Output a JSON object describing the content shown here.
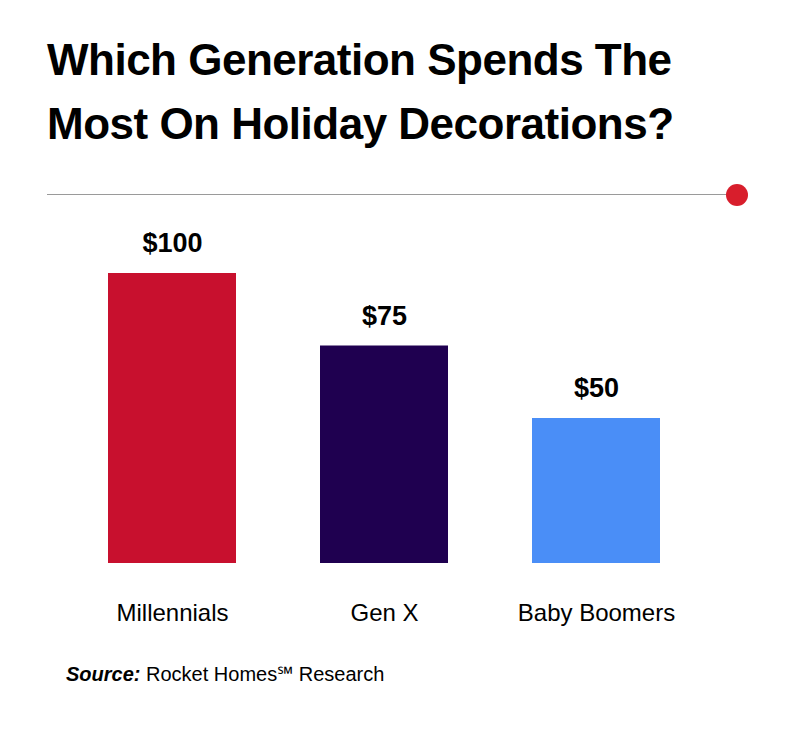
{
  "chart_data": {
    "type": "bar",
    "title": "Which Generation Spends The Most On Holiday Decorations?",
    "categories": [
      "Millennials",
      "Gen X",
      "Baby Boomers"
    ],
    "values": [
      100,
      75,
      50
    ],
    "value_labels": [
      "$100",
      "$75",
      "$50"
    ],
    "colors": [
      "#c8102e",
      "#1f0050",
      "#4a8ef7"
    ],
    "ylim": [
      0,
      100
    ],
    "data_labels": true,
    "tick_labels": "x",
    "grid": false,
    "caption": "Source: Rocket Homes℠ Research"
  }
}
